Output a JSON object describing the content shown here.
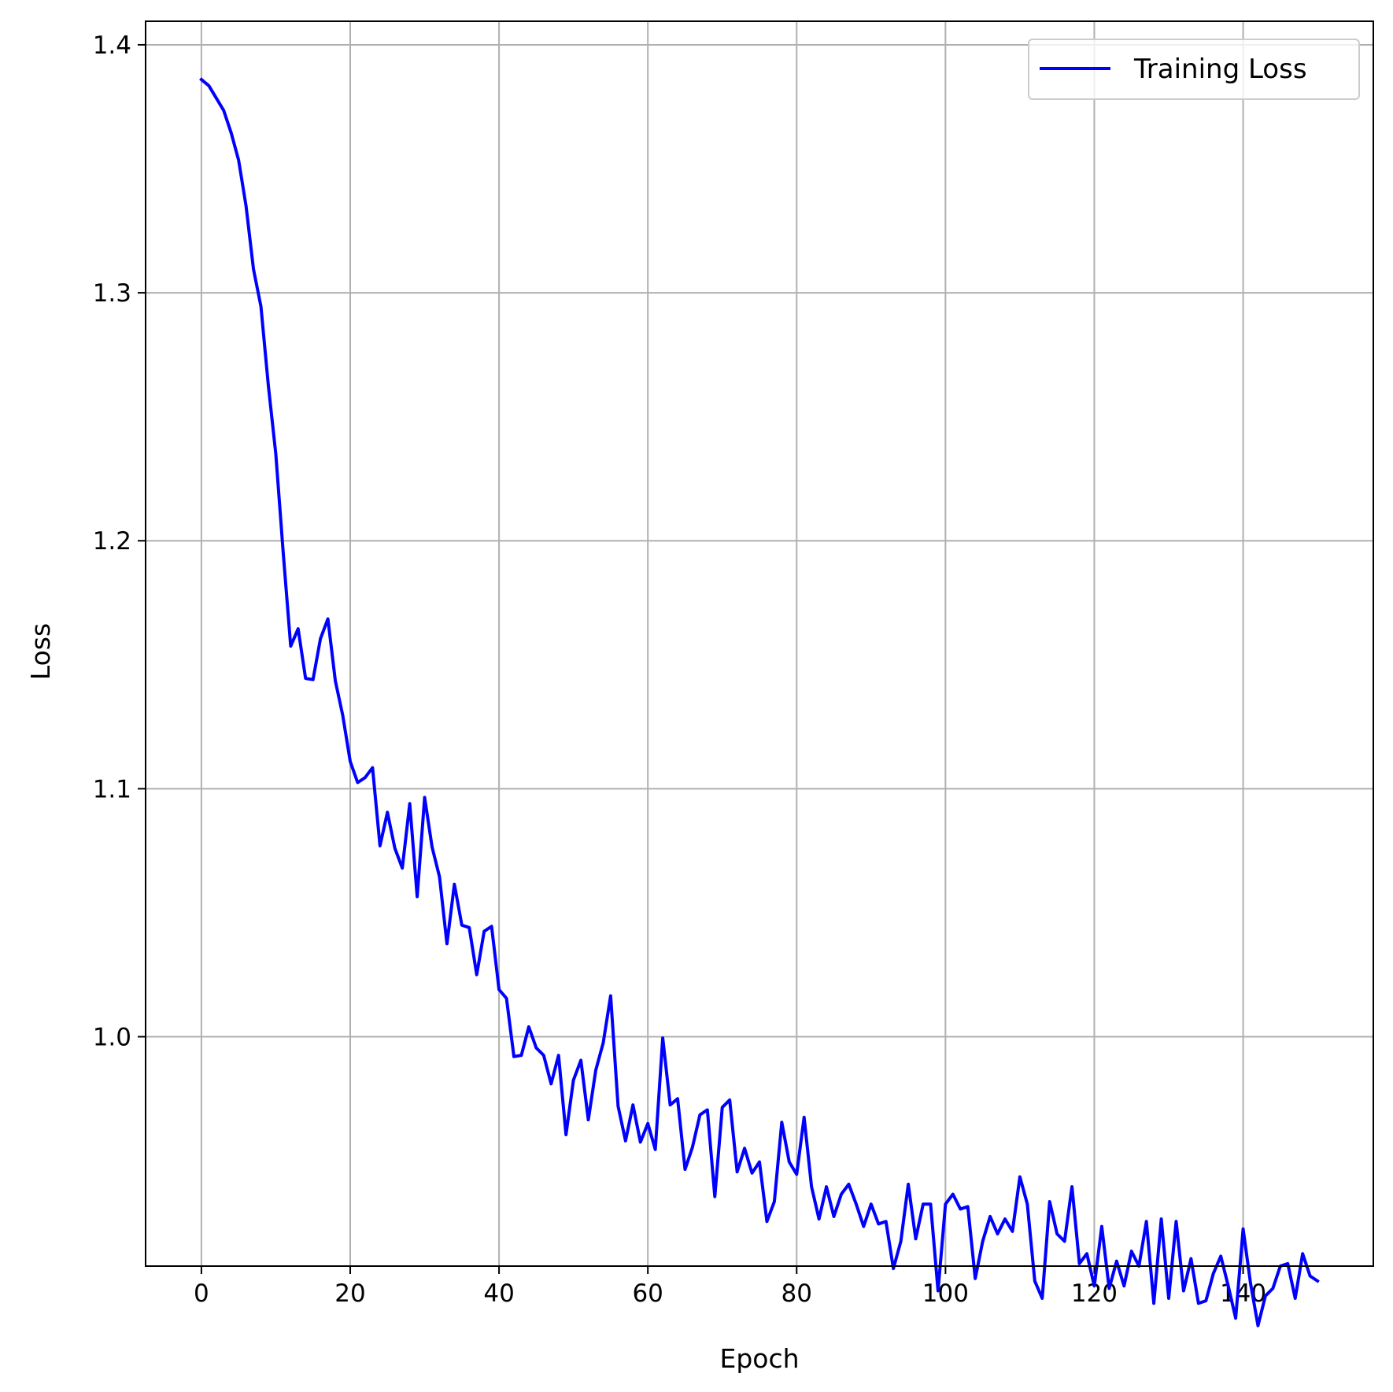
{
  "chart_data": {
    "type": "line",
    "title": "",
    "xlabel": "Epoch",
    "ylabel": "Loss",
    "xlim": [
      -7.5,
      157.5
    ],
    "ylim": [
      0.9075,
      1.4095
    ],
    "xticks": [
      0,
      20,
      40,
      60,
      80,
      100,
      120,
      140
    ],
    "yticks": [
      1.0,
      1.1,
      1.2,
      1.3,
      1.4
    ],
    "ytick_labels": [
      "1.0",
      "1.1",
      "1.2",
      "1.3",
      "1.4"
    ],
    "grid": true,
    "legend_position": "top-right",
    "series": [
      {
        "name": "Training Loss",
        "color": "#0000ff",
        "x": [
          0,
          1,
          2,
          3,
          4,
          5,
          6,
          7,
          8,
          9,
          10,
          11,
          12,
          13,
          14,
          15,
          16,
          17,
          18,
          19,
          20,
          21,
          22,
          23,
          24,
          25,
          26,
          27,
          28,
          29,
          30,
          31,
          32,
          33,
          34,
          35,
          36,
          37,
          38,
          39,
          40,
          41,
          42,
          43,
          44,
          45,
          46,
          47,
          48,
          49,
          50,
          51,
          52,
          53,
          54,
          55,
          56,
          57,
          58,
          59,
          60,
          61,
          62,
          63,
          64,
          65,
          66,
          67,
          68,
          69,
          70,
          71,
          72,
          73,
          74,
          75,
          76,
          77,
          78,
          79,
          80,
          81,
          82,
          83,
          84,
          85,
          86,
          87,
          88,
          89,
          90,
          91,
          92,
          93,
          94,
          95,
          96,
          97,
          98,
          99,
          100,
          101,
          102,
          103,
          104,
          105,
          106,
          107,
          108,
          109,
          110,
          111,
          112,
          113,
          114,
          115,
          116,
          117,
          118,
          119,
          120,
          121,
          122,
          123,
          124,
          125,
          126,
          127,
          128,
          129,
          130,
          131,
          132,
          133,
          134,
          135,
          136,
          137,
          138,
          139,
          140,
          141,
          142,
          143,
          144,
          145,
          146,
          147,
          148,
          149,
          150
        ],
        "values": [
          1.386,
          1.3835,
          1.3785,
          1.3735,
          1.3645,
          1.3535,
          1.335,
          1.3095,
          1.2945,
          1.2625,
          1.235,
          1.195,
          1.1575,
          1.1645,
          1.1445,
          1.144,
          1.1605,
          1.1685,
          1.1435,
          1.1295,
          1.111,
          1.1025,
          1.1045,
          1.1085,
          1.077,
          1.0905,
          1.076,
          1.068,
          1.094,
          1.0565,
          1.0965,
          1.0765,
          1.0645,
          1.0375,
          1.0615,
          1.045,
          1.044,
          1.025,
          1.0425,
          1.0445,
          1.019,
          1.0155,
          0.992,
          0.9925,
          1.004,
          0.9955,
          0.9925,
          0.981,
          0.9925,
          0.9605,
          0.9825,
          0.9905,
          0.9665,
          0.9865,
          0.9975,
          1.0165,
          0.972,
          0.958,
          0.9725,
          0.9575,
          0.965,
          0.9545,
          0.9995,
          0.9725,
          0.975,
          0.9465,
          0.9555,
          0.9685,
          0.9705,
          0.9355,
          0.9715,
          0.9745,
          0.9455,
          0.955,
          0.945,
          0.9495,
          0.9255,
          0.9335,
          0.9655,
          0.9495,
          0.9445,
          0.9675,
          0.9395,
          0.9265,
          0.9395,
          0.9275,
          0.9365,
          0.9405,
          0.9325,
          0.9235,
          0.9325,
          0.9245,
          0.9255,
          0.9065,
          0.9175,
          0.9405,
          0.9185,
          0.9325,
          0.9325,
          0.8975,
          0.9325,
          0.9365,
          0.9305,
          0.9315,
          0.9025,
          0.9175,
          0.9275,
          0.9205,
          0.9265,
          0.9215,
          0.9435,
          0.9325,
          0.9015,
          0.8945,
          0.9335,
          0.9205,
          0.9175,
          0.9395,
          0.9085,
          0.9125,
          0.8995,
          0.9235,
          0.8985,
          0.9095,
          0.8995,
          0.9135,
          0.9075,
          0.9255,
          0.8925,
          0.9265,
          0.8945,
          0.9255,
          0.8975,
          0.9105,
          0.8925,
          0.8935,
          0.9045,
          0.9115,
          0.8995,
          0.8865,
          0.9225,
          0.9005,
          0.8835,
          0.8955,
          0.8985,
          0.9075,
          0.9085,
          0.8945,
          0.9125,
          0.9035,
          0.9015
        ]
      }
    ]
  }
}
